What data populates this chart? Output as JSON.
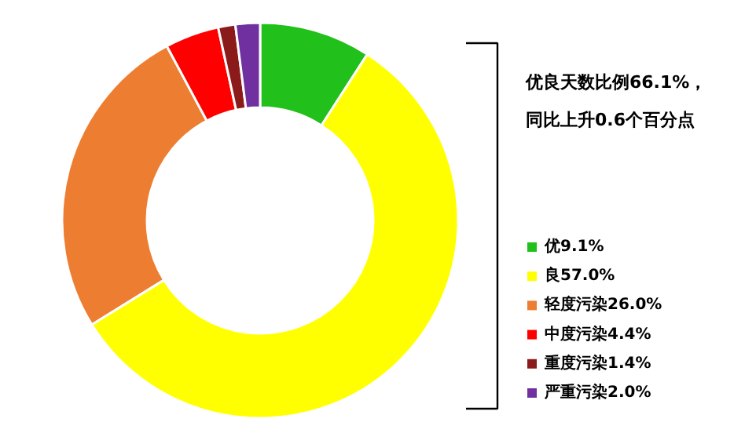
{
  "chart_data": {
    "type": "donut",
    "categories": [
      "优9.1%",
      "良57.0%",
      "轻度污染26.0%",
      "中度污染4.4%",
      "重度污染1.4%",
      "严重污染2.0%"
    ],
    "values": [
      9.1,
      57.0,
      26.0,
      4.4,
      1.4,
      2.0
    ],
    "colors": [
      "#22c01a",
      "#ffff00",
      "#ed7d31",
      "#ff0000",
      "#8b1a1a",
      "#7030a0"
    ],
    "annotations": [
      "优良天数比例66.1%，",
      "同比上升0.6个百分点"
    ],
    "legend": "right"
  }
}
